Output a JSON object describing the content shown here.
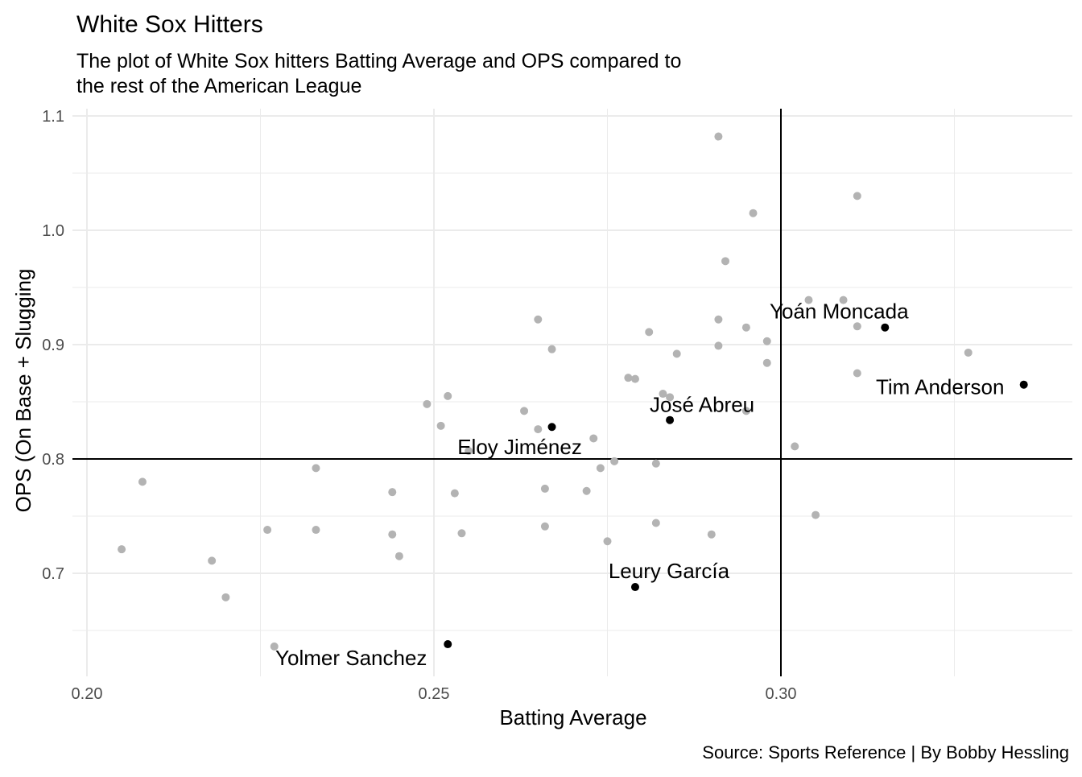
{
  "chart_data": {
    "type": "scatter",
    "title": "White Sox Hitters",
    "subtitle_lines": [
      "The plot of White Sox hitters Batting Average and OPS compared to",
      "the rest of the American League"
    ],
    "xlabel": "Batting Average",
    "ylabel": "OPS (On Base + Slugging",
    "caption": "Source: Sports Reference | By Bobby Hessling",
    "xlim": [
      0.2,
      0.3425
    ],
    "ylim": [
      0.619,
      1.106
    ],
    "x_ticks": [
      0.2,
      0.25,
      0.3
    ],
    "x_tick_labels": [
      "0.20",
      "0.25",
      "0.30"
    ],
    "y_ticks": [
      0.7,
      0.8,
      0.9,
      1.0,
      1.1
    ],
    "y_tick_labels": [
      "0.7",
      "0.8",
      "0.9",
      "1.0",
      "1.1"
    ],
    "grid": true,
    "reference_lines": {
      "x": 0.3,
      "y": 0.8
    },
    "colors": {
      "league": "#b3b3b3",
      "white_sox": "#000000",
      "reference_line": "#000000",
      "grid": "#ebebeb",
      "text": "#000000",
      "tick_text": "#4d4d4d"
    },
    "league_points": [
      {
        "x": 0.205,
        "y": 0.721
      },
      {
        "x": 0.208,
        "y": 0.78
      },
      {
        "x": 0.218,
        "y": 0.711
      },
      {
        "x": 0.22,
        "y": 0.679
      },
      {
        "x": 0.226,
        "y": 0.738
      },
      {
        "x": 0.227,
        "y": 0.636
      },
      {
        "x": 0.233,
        "y": 0.792
      },
      {
        "x": 0.233,
        "y": 0.738
      },
      {
        "x": 0.244,
        "y": 0.771
      },
      {
        "x": 0.244,
        "y": 0.734
      },
      {
        "x": 0.245,
        "y": 0.715
      },
      {
        "x": 0.249,
        "y": 0.848
      },
      {
        "x": 0.251,
        "y": 0.829
      },
      {
        "x": 0.252,
        "y": 0.855
      },
      {
        "x": 0.253,
        "y": 0.77
      },
      {
        "x": 0.254,
        "y": 0.735
      },
      {
        "x": 0.255,
        "y": 0.807
      },
      {
        "x": 0.263,
        "y": 0.842
      },
      {
        "x": 0.265,
        "y": 0.922
      },
      {
        "x": 0.265,
        "y": 0.826
      },
      {
        "x": 0.266,
        "y": 0.774
      },
      {
        "x": 0.266,
        "y": 0.741
      },
      {
        "x": 0.267,
        "y": 0.896
      },
      {
        "x": 0.272,
        "y": 0.772
      },
      {
        "x": 0.273,
        "y": 0.818
      },
      {
        "x": 0.274,
        "y": 0.792
      },
      {
        "x": 0.275,
        "y": 0.728
      },
      {
        "x": 0.276,
        "y": 0.798
      },
      {
        "x": 0.278,
        "y": 0.871
      },
      {
        "x": 0.279,
        "y": 0.87
      },
      {
        "x": 0.281,
        "y": 0.911
      },
      {
        "x": 0.282,
        "y": 0.796
      },
      {
        "x": 0.282,
        "y": 0.744
      },
      {
        "x": 0.283,
        "y": 0.857
      },
      {
        "x": 0.284,
        "y": 0.854
      },
      {
        "x": 0.285,
        "y": 0.892
      },
      {
        "x": 0.29,
        "y": 0.734
      },
      {
        "x": 0.291,
        "y": 1.082
      },
      {
        "x": 0.291,
        "y": 0.922
      },
      {
        "x": 0.291,
        "y": 0.899
      },
      {
        "x": 0.292,
        "y": 0.973
      },
      {
        "x": 0.295,
        "y": 0.915
      },
      {
        "x": 0.295,
        "y": 0.842
      },
      {
        "x": 0.296,
        "y": 1.015
      },
      {
        "x": 0.298,
        "y": 0.903
      },
      {
        "x": 0.298,
        "y": 0.884
      },
      {
        "x": 0.302,
        "y": 0.811
      },
      {
        "x": 0.304,
        "y": 0.939
      },
      {
        "x": 0.305,
        "y": 0.751
      },
      {
        "x": 0.309,
        "y": 0.939
      },
      {
        "x": 0.311,
        "y": 1.03
      },
      {
        "x": 0.311,
        "y": 0.916
      },
      {
        "x": 0.311,
        "y": 0.875
      },
      {
        "x": 0.327,
        "y": 0.893
      }
    ],
    "white_sox_points": [
      {
        "name": "Yoán Moncada",
        "x": 0.315,
        "y": 0.915
      },
      {
        "name": "Tim Anderson",
        "x": 0.335,
        "y": 0.865
      },
      {
        "name": "José Abreu",
        "x": 0.284,
        "y": 0.834
      },
      {
        "name": "Eloy Jiménez",
        "x": 0.267,
        "y": 0.828
      },
      {
        "name": "Leury García",
        "x": 0.279,
        "y": 0.688
      },
      {
        "name": "Yolmer Sanchez",
        "x": 0.252,
        "y": 0.638
      }
    ]
  }
}
